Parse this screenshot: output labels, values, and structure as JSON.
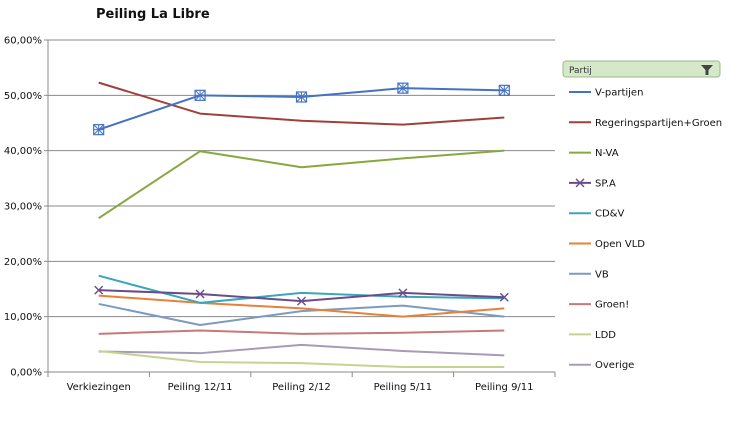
{
  "chart_data": {
    "type": "line",
    "title": "Peiling La Libre",
    "xlabel": "",
    "ylabel": "",
    "categories": [
      "Verkiezingen",
      "Peiling 12/11",
      "Peiling 2/12",
      "Peiling 5/11",
      "Peiling 9/11"
    ],
    "y_tick_labels": [
      "0,00%",
      "10,00%",
      "20,00%",
      "30,00%",
      "40,00%",
      "50,00%",
      "60,00%"
    ],
    "ylim": [
      0,
      60
    ],
    "grid": true,
    "legend_title": "Partij",
    "legend_position": "right",
    "series": [
      {
        "name": "V-partijen",
        "color": "#4572c4",
        "marker": "pattern",
        "values": [
          43.8,
          50.0,
          49.7,
          51.3,
          50.9
        ]
      },
      {
        "name": "Regeringspartijen+Groen",
        "color": "#a0403c",
        "marker": "none",
        "values": [
          52.3,
          46.7,
          45.4,
          44.7,
          46.0
        ]
      },
      {
        "name": "N-VA",
        "color": "#86a83e",
        "marker": "none",
        "values": [
          27.8,
          39.9,
          37.0,
          38.6,
          40.0
        ]
      },
      {
        "name": "SP.A",
        "color": "#6a4c8a",
        "marker": "x",
        "values": [
          14.8,
          14.1,
          12.8,
          14.3,
          13.5
        ]
      },
      {
        "name": "CD&V",
        "color": "#3aa7b8",
        "marker": "none",
        "values": [
          17.4,
          12.5,
          14.3,
          13.6,
          13.3
        ]
      },
      {
        "name": "Open VLD",
        "color": "#e8803a",
        "marker": "none",
        "values": [
          13.8,
          12.5,
          11.5,
          10.0,
          11.5
        ]
      },
      {
        "name": "VB",
        "color": "#7a9cc0",
        "marker": "none",
        "values": [
          12.3,
          8.5,
          11.0,
          12.0,
          10.0
        ]
      },
      {
        "name": "Groen!",
        "color": "#c57a78",
        "marker": "none",
        "values": [
          6.9,
          7.5,
          6.9,
          7.1,
          7.5
        ]
      },
      {
        "name": "LDD",
        "color": "#c4d48e",
        "marker": "none",
        "values": [
          3.8,
          1.8,
          1.6,
          0.9,
          0.9
        ]
      },
      {
        "name": "Overige",
        "color": "#a89ab8",
        "marker": "none",
        "values": [
          3.7,
          3.4,
          4.9,
          3.8,
          3.0
        ]
      }
    ]
  }
}
